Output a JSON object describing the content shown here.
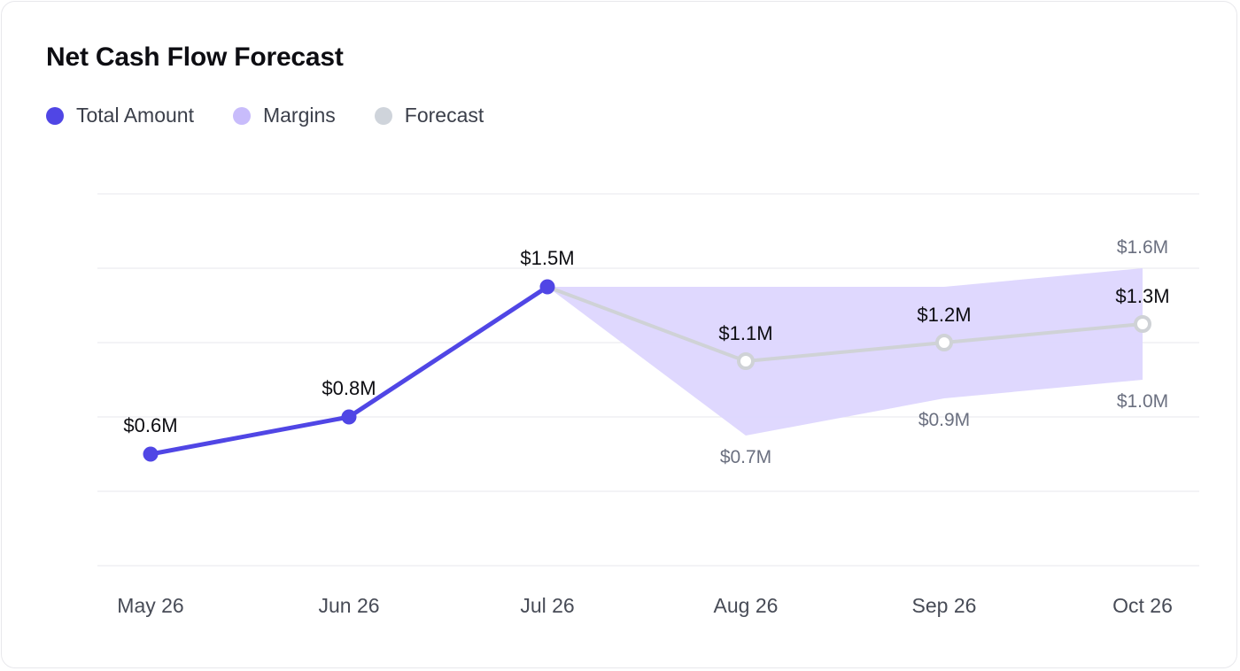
{
  "title": "Net Cash Flow Forecast",
  "legend": [
    {
      "label": "Total Amount",
      "color": "#5046e5"
    },
    {
      "label": "Margins",
      "color": "#c8bcfb"
    },
    {
      "label": "Forecast",
      "color": "#cfd4db"
    }
  ],
  "colors": {
    "actual_line": "#5046e5",
    "forecast_line": "#cfd2d6",
    "margin_band": "#ddd6fe",
    "grid": "#ececf0"
  },
  "chart_data": {
    "type": "line",
    "categories": [
      "May 26",
      "Jun 26",
      "Jul 26",
      "Aug 26",
      "Sep 26",
      "Oct 26"
    ],
    "ylim": [
      0,
      2.0
    ],
    "grid": true,
    "series": [
      {
        "name": "Total Amount",
        "values": [
          0.6,
          0.8,
          1.5,
          null,
          null,
          null
        ],
        "labels": [
          "$0.6M",
          "$0.8M",
          "$1.5M",
          "",
          "",
          ""
        ]
      },
      {
        "name": "Forecast",
        "values": [
          null,
          null,
          1.5,
          1.1,
          1.2,
          1.3
        ],
        "labels": [
          "",
          "",
          "",
          "$1.1M",
          "$1.2M",
          "$1.3M"
        ]
      },
      {
        "name": "Margins",
        "upper": [
          null,
          null,
          1.5,
          1.5,
          1.5,
          1.6
        ],
        "lower": [
          null,
          null,
          1.5,
          0.7,
          0.9,
          1.0
        ],
        "upper_labels": [
          "",
          "",
          "",
          "",
          "",
          "$1.6M"
        ],
        "lower_labels": [
          "",
          "",
          "",
          "$0.7M",
          "$0.9M",
          "$1.0M"
        ]
      }
    ]
  }
}
